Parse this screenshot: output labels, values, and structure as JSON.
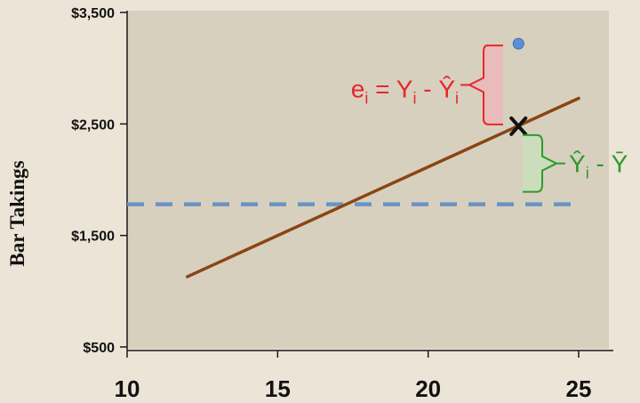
{
  "chart_data": {
    "type": "line",
    "title": "",
    "xlabel": "",
    "ylabel": "Bar Takings",
    "xlim": [
      10,
      25
    ],
    "ylim": [
      500,
      3500
    ],
    "x_ticks": [
      "10",
      "15",
      "20",
      "25"
    ],
    "y_ticks": [
      "$500",
      "$1,500",
      "$2,500",
      "$3,500"
    ],
    "grid": false,
    "series": [
      {
        "role": "regression-line",
        "x": [
          12,
          25
        ],
        "y": [
          1130,
          2730
        ],
        "color": "#8b4513"
      },
      {
        "role": "mean-line",
        "x": [
          10,
          25
        ],
        "y": [
          1780,
          1780
        ],
        "color": "#6a93c4",
        "style": "dashed"
      },
      {
        "role": "observed-point",
        "x": [
          23
        ],
        "y": [
          3220
        ],
        "color": "#5b8fd6"
      },
      {
        "role": "predicted-point",
        "x": [
          23
        ],
        "y": [
          2480
        ],
        "color": "#111111",
        "marker": "X"
      }
    ],
    "annotations": [
      {
        "id": "residual",
        "text_parts": [
          "e",
          "i",
          " = Y",
          "i",
          " - Ŷ",
          "i"
        ],
        "color": "#e8262a",
        "span_y": [
          2480,
          3220
        ]
      },
      {
        "id": "explained",
        "text_parts": [
          "Ŷ",
          "i",
          " - Ȳ"
        ],
        "color": "#2e9a2e",
        "span_y": [
          1780,
          2480
        ]
      }
    ]
  }
}
